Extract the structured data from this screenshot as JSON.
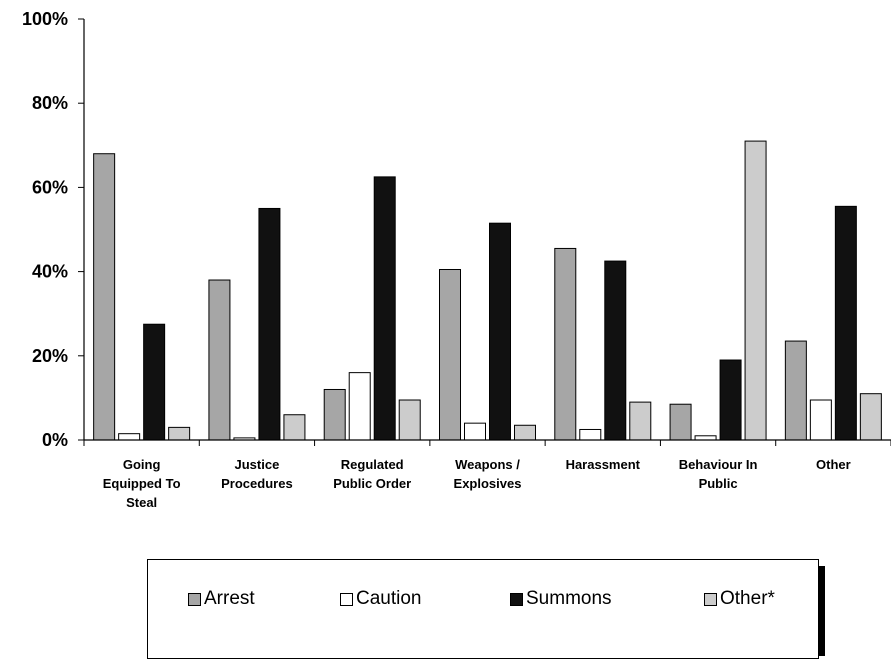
{
  "chart_data": {
    "type": "bar",
    "categories": [
      [
        "Going",
        "Equipped To",
        "Steal"
      ],
      [
        "Justice",
        "Procedures"
      ],
      [
        "Regulated",
        "Public Order"
      ],
      [
        "Weapons /",
        "Explosives"
      ],
      [
        "Harassment"
      ],
      [
        "Behaviour In",
        "Public"
      ],
      [
        "Other"
      ]
    ],
    "series": [
      {
        "name": "Arrest",
        "color": "#a6a6a6",
        "values": [
          68,
          38,
          12,
          40.5,
          45.5,
          8.5,
          23.5
        ]
      },
      {
        "name": "Caution",
        "color": "#ffffff",
        "values": [
          1.5,
          0.5,
          16,
          4,
          2.5,
          1,
          9.5
        ]
      },
      {
        "name": "Summons",
        "color": "#111111",
        "values": [
          27.5,
          55,
          62.5,
          51.5,
          42.5,
          19,
          55.5
        ]
      },
      {
        "name": "Other*",
        "color": "#cccccc",
        "values": [
          3,
          6,
          9.5,
          3.5,
          9,
          71,
          11
        ]
      }
    ],
    "ylim": [
      0,
      100
    ],
    "yticks": [
      "0%",
      "20%",
      "40%",
      "60%",
      "80%",
      "100%"
    ],
    "xlabel": "",
    "ylabel": "",
    "grid": false,
    "legend_position": "bottom"
  }
}
